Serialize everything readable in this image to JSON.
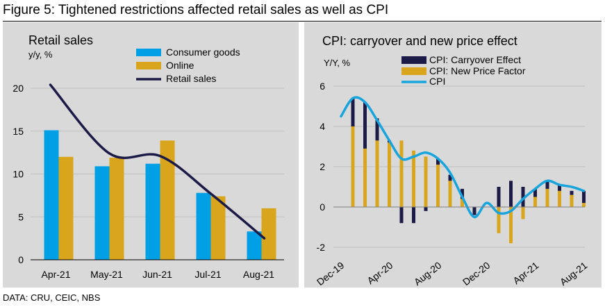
{
  "figure": {
    "title": "Figure 5: Tightened restrictions affected retail sales as well as CPI",
    "source": "DATA: CRU, CEIC, NBS"
  },
  "colors": {
    "panel_bg": "#d9d9d9",
    "consumer_goods": "#00a0e6",
    "online": "#d8a51c",
    "retail_line": "#1c1a47",
    "carryover": "#1c1a47",
    "new_price": "#d8a51c",
    "cpi_line": "#18a4dc",
    "grid": "#bfbfbf"
  },
  "chart_data": [
    {
      "type": "bar",
      "title": "Retail sales",
      "ylabel": "y/y, %",
      "categories": [
        "Apr-21",
        "May-21",
        "Jun-21",
        "Jul-21",
        "Aug-21"
      ],
      "ylim": [
        0,
        20
      ],
      "yticks": [
        0,
        5,
        10,
        15,
        20
      ],
      "grid": true,
      "legend_position": "top",
      "series": [
        {
          "name": "Consumer goods",
          "kind": "bar",
          "values": [
            15.1,
            10.9,
            11.2,
            7.8,
            3.3
          ]
        },
        {
          "name": "Online",
          "kind": "bar",
          "values": [
            12.0,
            11.9,
            13.9,
            7.4,
            6.0
          ]
        },
        {
          "name": "Retail sales",
          "kind": "line",
          "values": [
            20.4,
            12.4,
            12.1,
            7.7,
            2.5
          ]
        }
      ]
    },
    {
      "type": "bar",
      "title": "CPI: carryover and new price effect",
      "ylabel": "Y/Y, %",
      "x_ticks": [
        "Dec-19",
        "Apr-20",
        "Aug-20",
        "Dec-20",
        "Apr-21",
        "Aug-21"
      ],
      "ylim": [
        -2,
        6
      ],
      "yticks": [
        -2,
        0,
        2,
        4,
        6
      ],
      "grid": true,
      "legend_position": "top",
      "stacked": true,
      "x": [
        "Jan-20",
        "Feb-20",
        "Mar-20",
        "Apr-20",
        "May-20",
        "Jun-20",
        "Jul-20",
        "Aug-20",
        "Sep-20",
        "Oct-20",
        "Nov-20",
        "Dec-20",
        "Jan-21",
        "Feb-21",
        "Mar-21",
        "Apr-21",
        "May-21",
        "Jun-21",
        "Jul-21",
        "Aug-21"
      ],
      "series": [
        {
          "name": "CPI: Carryover Effect",
          "kind": "bar",
          "values": [
            1.4,
            2.3,
            1.1,
            0.1,
            -0.8,
            -0.8,
            -0.2,
            0.3,
            0.3,
            0.5,
            -0.4,
            0.0,
            1.0,
            1.3,
            1.0,
            0.4,
            0.4,
            0.3,
            0.2,
            0.6
          ]
        },
        {
          "name": "CPI: New Price Factor",
          "kind": "bar",
          "values": [
            4.0,
            2.9,
            3.3,
            3.2,
            3.3,
            2.8,
            2.5,
            2.1,
            1.3,
            0.4,
            0.0,
            0.0,
            -1.3,
            -1.8,
            -0.6,
            0.5,
            0.9,
            0.8,
            0.6,
            0.2
          ]
        },
        {
          "name": "CPI",
          "kind": "line",
          "values": [
            5.4,
            5.2,
            4.3,
            3.3,
            2.4,
            2.5,
            2.7,
            2.4,
            1.7,
            0.5,
            -0.5,
            0.2,
            -0.3,
            -0.2,
            0.4,
            0.9,
            1.3,
            1.1,
            1.0,
            0.8
          ]
        }
      ]
    }
  ]
}
